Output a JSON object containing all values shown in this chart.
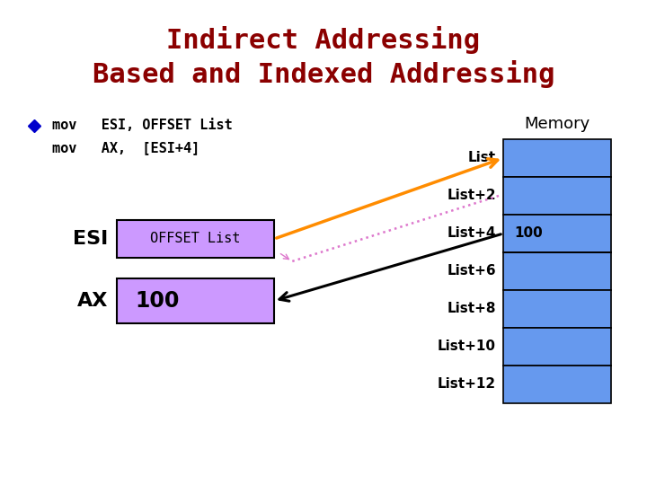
{
  "title_line1": "Indirect Addressing",
  "title_line2": "Based and Indexed Addressing",
  "title_color": "#8B0000",
  "bg_color": "#FFFFFF",
  "code_line1": "mov   ESI, OFFSET List",
  "code_line2": "mov   AX,  [ESI+4]",
  "esi_label": "ESI",
  "ax_label": "AX",
  "esi_box_text": "OFFSET List",
  "ax_box_text": "100",
  "memory_label": "Memory",
  "memory_labels": [
    "List",
    "List+2",
    "List+4",
    "List+6",
    "List+8",
    "List+10",
    "List+12"
  ],
  "memory_value": "100",
  "box_fill_color": "#CC99FF",
  "memory_fill_color": "#6699EE",
  "arrow_esi_color": "#FF8C00",
  "arrow_ax_color": "#000000",
  "arrow_dotted_color": "#DD77CC",
  "bullet_color": "#0000CC"
}
